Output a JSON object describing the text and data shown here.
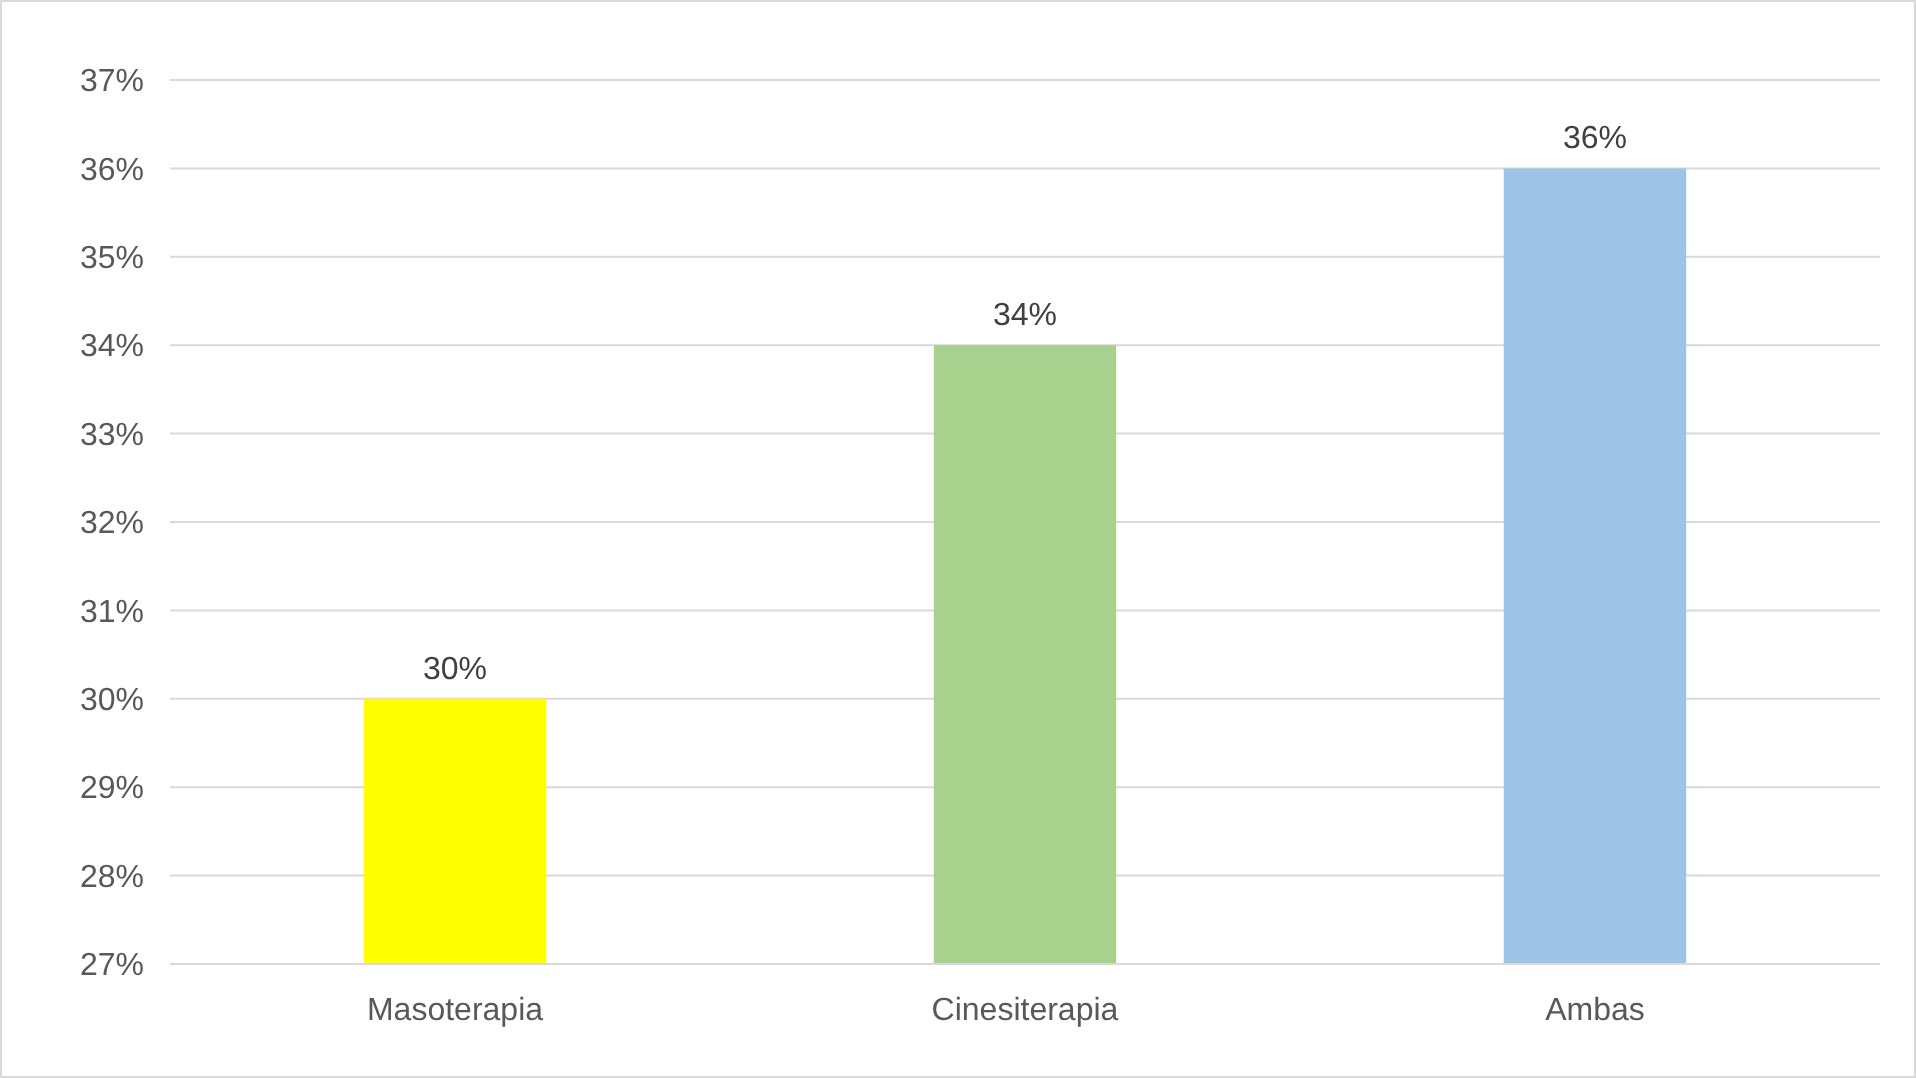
{
  "chart_data": {
    "type": "bar",
    "categories": [
      "Masoterapia",
      "Cinesiterapia",
      "Ambas"
    ],
    "values": [
      30,
      34,
      36
    ],
    "colors": [
      "#ffff00",
      "#a9d18e",
      "#9dc3e6"
    ],
    "value_labels": [
      "30%",
      "34%",
      "36%"
    ],
    "ylim": [
      27,
      37
    ],
    "yticks": [
      {
        "value": 27,
        "label": "27%"
      },
      {
        "value": 28,
        "label": "28%"
      },
      {
        "value": 29,
        "label": "29%"
      },
      {
        "value": 30,
        "label": "30%"
      },
      {
        "value": 31,
        "label": "31%"
      },
      {
        "value": 32,
        "label": "32%"
      },
      {
        "value": 33,
        "label": "33%"
      },
      {
        "value": 34,
        "label": "34%"
      },
      {
        "value": 35,
        "label": "35%"
      },
      {
        "value": 36,
        "label": "36%"
      },
      {
        "value": 37,
        "label": "37%"
      }
    ],
    "grid": "y"
  }
}
